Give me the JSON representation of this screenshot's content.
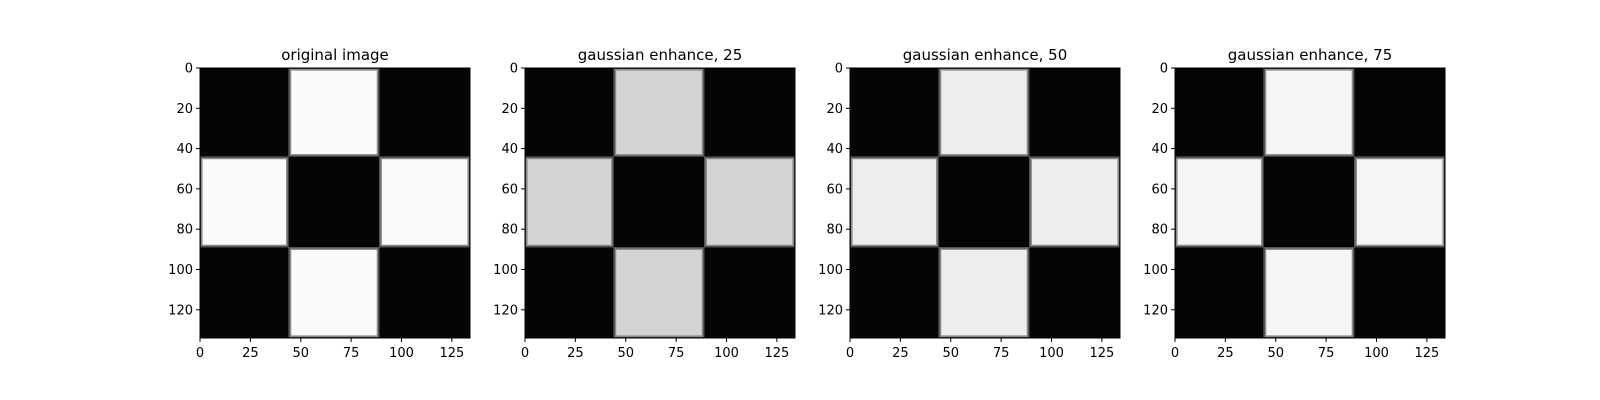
{
  "chart_data": [
    {
      "type": "heatmap",
      "title": "original image",
      "xlabel": "",
      "ylabel": "",
      "xlim": [
        0,
        134
      ],
      "ylim": [
        134,
        0
      ],
      "xticks": [
        "0",
        "25",
        "50",
        "75",
        "100",
        "125"
      ],
      "yticks": [
        "0",
        "20",
        "40",
        "60",
        "80",
        "100",
        "120"
      ],
      "pattern": "3x3 checkerboard: white blocks at (top-middle, middle-left, middle-right, bottom-middle), black elsewhere",
      "block_boundaries": [
        0,
        44,
        89,
        134
      ],
      "grid": [
        [
          0,
          1,
          0
        ],
        [
          1,
          0,
          1
        ],
        [
          0,
          1,
          0
        ]
      ],
      "light_value": 0.98,
      "dark_value": 0.02,
      "colormap": "gray"
    },
    {
      "type": "heatmap",
      "title": "gaussian enhance, 25",
      "xlabel": "",
      "ylabel": "",
      "xlim": [
        0,
        134
      ],
      "ylim": [
        134,
        0
      ],
      "xticks": [
        "0",
        "25",
        "50",
        "75",
        "100",
        "125"
      ],
      "yticks": [
        "0",
        "20",
        "40",
        "60",
        "80",
        "100",
        "120"
      ],
      "block_boundaries": [
        0,
        44,
        89,
        134
      ],
      "grid": [
        [
          0,
          1,
          0
        ],
        [
          1,
          0,
          1
        ],
        [
          0,
          1,
          0
        ]
      ],
      "light_value": 0.83,
      "dark_value": 0.02,
      "colormap": "gray"
    },
    {
      "type": "heatmap",
      "title": "gaussian enhance, 50",
      "xlabel": "",
      "ylabel": "",
      "xlim": [
        0,
        134
      ],
      "ylim": [
        134,
        0
      ],
      "xticks": [
        "0",
        "25",
        "50",
        "75",
        "100",
        "125"
      ],
      "yticks": [
        "0",
        "20",
        "40",
        "60",
        "80",
        "100",
        "120"
      ],
      "block_boundaries": [
        0,
        44,
        89,
        134
      ],
      "grid": [
        [
          0,
          1,
          0
        ],
        [
          1,
          0,
          1
        ],
        [
          0,
          1,
          0
        ]
      ],
      "light_value": 0.93,
      "dark_value": 0.02,
      "colormap": "gray"
    },
    {
      "type": "heatmap",
      "title": "gaussian enhance, 75",
      "xlabel": "",
      "ylabel": "",
      "xlim": [
        0,
        134
      ],
      "ylim": [
        134,
        0
      ],
      "xticks": [
        "0",
        "25",
        "50",
        "75",
        "100",
        "125"
      ],
      "yticks": [
        "0",
        "20",
        "40",
        "60",
        "80",
        "100",
        "120"
      ],
      "block_boundaries": [
        0,
        44,
        89,
        134
      ],
      "grid": [
        [
          0,
          1,
          0
        ],
        [
          1,
          0,
          1
        ],
        [
          0,
          1,
          0
        ]
      ],
      "light_value": 0.96,
      "dark_value": 0.02,
      "colormap": "gray"
    }
  ]
}
